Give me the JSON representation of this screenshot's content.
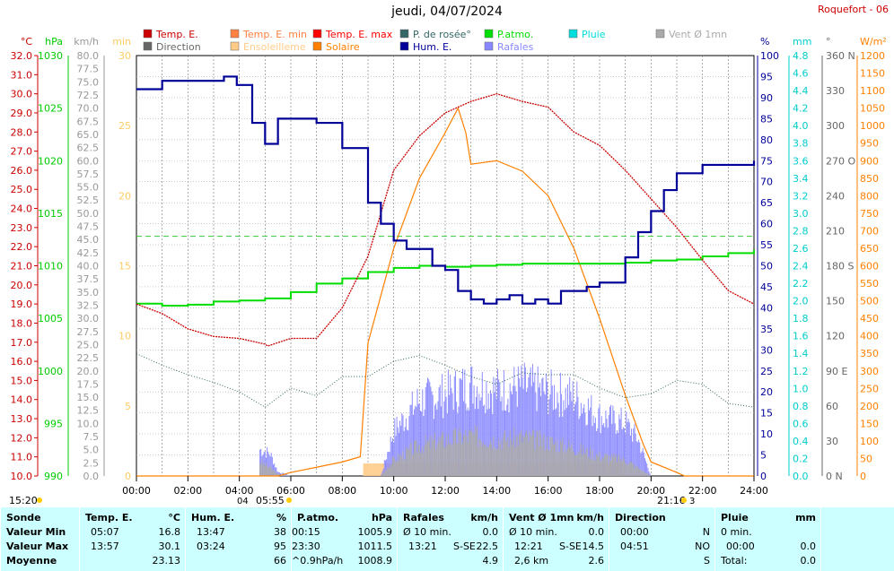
{
  "header": {
    "date": "jeudi, 04/07/2024",
    "site": "Roquefort - 06"
  },
  "legend": [
    {
      "label": "Temp. E.",
      "color": "#cc0000"
    },
    {
      "label": "Temp. E. min",
      "color": "#ff8040"
    },
    {
      "label": "Temp. E. max",
      "color": "#ff0000"
    },
    {
      "label": "P.atmo.",
      "color": "#00dd00"
    },
    {
      "label": "Pluie",
      "color": "#00dddd"
    },
    {
      "label": "Vent Ø 1mn",
      "color": "#aaaaaa"
    },
    {
      "label": "Direction",
      "color": "#666666"
    },
    {
      "label": "Ensoleilleme",
      "color": "#ffcc88"
    },
    {
      "label": "Solaire",
      "color": "#ff8000"
    },
    {
      "label": "Hum. E.",
      "color": "#000099"
    },
    {
      "label": "P. de rosée°",
      "color": "#336666"
    },
    {
      "label": "Rafales",
      "color": "#8888ff"
    }
  ],
  "axes": {
    "temp": {
      "unit": "°C",
      "color": "#cc0000",
      "ticks": [
        "32.0",
        "31.0",
        "30.0",
        "29.0",
        "28.0",
        "27.0",
        "26.0",
        "25.0",
        "24.0",
        "23.0",
        "22.0",
        "21.0",
        "20.0",
        "19.0",
        "18.0",
        "17.0",
        "16.0",
        "15.0",
        "14.0",
        "13.0",
        "12.0",
        "11.0",
        "10.0"
      ]
    },
    "pressure": {
      "unit": "hPa",
      "color": "#00cc00",
      "ticks": [
        "1030",
        "1025",
        "1020",
        "1015",
        "1010",
        "1005",
        "1000",
        "995",
        "990"
      ]
    },
    "wind": {
      "unit": "km/h",
      "color": "#999999",
      "ticks": [
        "80.0",
        "77.5",
        "75.0",
        "72.5",
        "70.0",
        "67.5",
        "65.0",
        "62.5",
        "60.0",
        "57.5",
        "55.0",
        "52.5",
        "50.0",
        "47.5",
        "45.0",
        "42.5",
        "40.0",
        "37.5",
        "35.0",
        "32.5",
        "30.0",
        "27.5",
        "25.0",
        "22.5",
        "20.0",
        "17.5",
        "15.0",
        "12.5",
        "10.0",
        "7.5",
        "5.0",
        "2.5",
        "0.0"
      ]
    },
    "minutes": {
      "unit": "min",
      "color": "#ffcc66",
      "ticks": [
        "30",
        "25",
        "20",
        "15",
        "10",
        "5",
        "0"
      ]
    },
    "humidity": {
      "unit": "%",
      "color": "#000099",
      "ticks": [
        "100",
        "95",
        "90",
        "85",
        "80",
        "75",
        "70",
        "65",
        "60",
        "55",
        "50",
        "45",
        "40",
        "35",
        "30",
        "25",
        "20",
        "15",
        "10",
        "5",
        "0"
      ]
    },
    "rain": {
      "unit": "mm",
      "color": "#00cccc",
      "ticks": [
        "4.8",
        "4.6",
        "4.4",
        "4.2",
        "4.0",
        "3.8",
        "3.6",
        "3.4",
        "3.2",
        "3.0",
        "2.8",
        "2.6",
        "2.4",
        "2.2",
        "2.0",
        "1.8",
        "1.6",
        "1.4",
        "1.2",
        "1.0",
        "0.8",
        "0.6",
        "0.4",
        "0.2",
        "0.0"
      ]
    },
    "direction": {
      "unit": "°",
      "color": "#666666",
      "ticks": [
        "360 N",
        "330",
        "300",
        "270 O",
        "240",
        "210",
        "180 S",
        "150",
        "120",
        "90 E",
        "60",
        "30",
        "0 N"
      ]
    },
    "solar": {
      "unit": "W/m²",
      "color": "#ff8000",
      "ticks": [
        "1200",
        "1150",
        "1100",
        "1050",
        "1000",
        "950",
        "900",
        "850",
        "800",
        "750",
        "700",
        "650",
        "600",
        "550",
        "500",
        "450",
        "400",
        "350",
        "300",
        "250",
        "200",
        "150",
        "100",
        "50",
        "0"
      ]
    },
    "time": {
      "ticks": [
        "00:00",
        "02:00",
        "04:00",
        "06:00",
        "08:00",
        "10:00",
        "12:00",
        "14:00",
        "16:00",
        "18:00",
        "20:00",
        "22:00",
        "24:00"
      ]
    }
  },
  "sun": {
    "sunrise": "05:55",
    "sunset": "21:16",
    "left": "15:20",
    "moonrise": "04",
    "moonset": "3"
  },
  "chart_data": {
    "type": "line",
    "title": "jeudi, 04/07/2024",
    "x_unit": "hour",
    "series": [
      {
        "name": "Temp. E.",
        "unit": "°C",
        "color": "#cc0000",
        "x": [
          0,
          1,
          2,
          3,
          4,
          5,
          5.1,
          6,
          7,
          8,
          9,
          10,
          11,
          12,
          13,
          14,
          15,
          16,
          17,
          18,
          19,
          20,
          21,
          22,
          23,
          24
        ],
        "values": [
          19.0,
          18.5,
          17.7,
          17.3,
          17.2,
          16.9,
          16.8,
          17.2,
          17.2,
          18.8,
          21.5,
          26.0,
          27.8,
          29.0,
          29.6,
          30.0,
          29.6,
          29.3,
          28.0,
          27.3,
          26.0,
          24.5,
          23.0,
          21.3,
          19.7,
          19.0
        ]
      },
      {
        "name": "P.atmo.",
        "unit": "hPa",
        "color": "#00dd00",
        "x": [
          0,
          1,
          2,
          3,
          4,
          5,
          6,
          7,
          8,
          9,
          10,
          11,
          12,
          13,
          14,
          15,
          16,
          17,
          18,
          19,
          20,
          21,
          22,
          23,
          24
        ],
        "values": [
          1006.4,
          1006.2,
          1006.3,
          1006.6,
          1006.7,
          1006.9,
          1007.5,
          1008.3,
          1008.8,
          1009.4,
          1009.8,
          1010.0,
          1009.9,
          1010.0,
          1010.1,
          1010.2,
          1010.2,
          1010.2,
          1010.2,
          1010.3,
          1010.5,
          1010.6,
          1010.9,
          1011.2,
          1011.5
        ]
      },
      {
        "name": "Hum. E.",
        "unit": "%",
        "color": "#000099",
        "x": [
          0,
          0.8,
          1,
          2,
          3,
          3.4,
          3.9,
          4.5,
          5,
          5.5,
          6,
          7,
          8,
          9,
          9.5,
          10,
          10.5,
          11,
          11.5,
          12,
          12.5,
          13,
          13.5,
          14,
          14.5,
          15,
          15.5,
          16,
          16.5,
          17,
          17.5,
          18,
          19,
          19.5,
          20,
          20.5,
          21,
          22,
          23,
          24
        ],
        "values": [
          92,
          92,
          94,
          94,
          94,
          95,
          93,
          84,
          79,
          85,
          85,
          84,
          78,
          65,
          60,
          56,
          54,
          54,
          50,
          49,
          44,
          42,
          41,
          42,
          43,
          41,
          42,
          41,
          44,
          44,
          45,
          46,
          52,
          58,
          63,
          68,
          72,
          74,
          74,
          75
        ]
      },
      {
        "name": "P. de rosée°",
        "unit": "°C",
        "color": "#336666",
        "x": [
          0,
          1,
          2,
          3,
          4,
          5,
          6,
          7,
          8,
          9,
          10,
          11,
          12,
          13,
          14,
          15,
          16,
          17,
          18,
          19,
          20,
          21,
          22,
          23,
          24
        ],
        "values": [
          16.4,
          15.8,
          15.3,
          14.9,
          14.4,
          13.6,
          14.6,
          14.2,
          15.2,
          15.2,
          16.0,
          16.3,
          15.8,
          15.2,
          14.8,
          15.4,
          15.3,
          15.3,
          14.6,
          14.1,
          14.3,
          15.0,
          14.8,
          13.8,
          13.6
        ]
      },
      {
        "name": "Solaire",
        "unit": "W/m²",
        "color": "#ff8000",
        "x": [
          0,
          5.5,
          6,
          7,
          8,
          8.7,
          9,
          10,
          11,
          12,
          12.5,
          12.8,
          13,
          14,
          15,
          16,
          17,
          18,
          19,
          19.7,
          20,
          21,
          21.3,
          24
        ],
        "values": [
          0,
          0,
          10,
          25,
          40,
          55,
          380,
          650,
          850,
          980,
          1050,
          980,
          890,
          900,
          870,
          800,
          650,
          450,
          230,
          90,
          40,
          10,
          0,
          0
        ]
      },
      {
        "name": "Rafales",
        "unit": "km/h",
        "color": "#8888ff",
        "x": [
          4.8,
          5.2,
          5.5,
          6,
          9.5,
          10,
          11,
          12,
          13,
          14,
          15,
          16,
          17,
          18,
          19,
          19.5,
          20
        ],
        "values": [
          6.5,
          5.5,
          1.0,
          0,
          0,
          11.0,
          18.5,
          20.0,
          22.5,
          21.0,
          22.0,
          20.5,
          19.5,
          14.5,
          13.0,
          9.0,
          0
        ]
      },
      {
        "name": "Vent Ø 1mn",
        "unit": "km/h",
        "color": "#aaaaaa",
        "x": [
          4.8,
          5.2,
          5.5,
          6,
          9.5,
          10,
          11,
          12,
          13,
          14,
          15,
          16,
          17,
          18,
          19,
          19.5,
          20
        ],
        "values": [
          3.5,
          2.0,
          0.5,
          0,
          0,
          4.0,
          7.5,
          9.0,
          10.0,
          9.0,
          9.5,
          8.5,
          7.0,
          5.0,
          4.0,
          2.0,
          0
        ]
      },
      {
        "name": "Ensoleilleme",
        "unit": "min",
        "color": "#ffcc88",
        "x": [
          0,
          8.8,
          8.81,
          18.9,
          18.91,
          24
        ],
        "values": [
          0,
          0,
          1,
          1,
          0,
          0
        ]
      },
      {
        "name": "Pluie",
        "unit": "mm",
        "color": "#00dddd",
        "x": [
          0,
          24
        ],
        "values": [
          0.0,
          0.0
        ]
      }
    ],
    "humidity_reference": 57,
    "ylim_temp": [
      10,
      32
    ],
    "ylim_pressure": [
      990,
      1030
    ],
    "ylim_wind": [
      0,
      80
    ],
    "ylim_humidity": [
      0,
      100
    ],
    "ylim_solar": [
      0,
      1200
    ],
    "xlim": [
      0,
      24
    ]
  },
  "summary": {
    "row_labels": [
      "Sonde",
      "Valeur Min",
      "Valeur Max",
      "Moyenne"
    ],
    "temp": {
      "title": "Temp. E.",
      "unit": "°C",
      "min_time": "05:07",
      "min": "16.8",
      "max_time": "13:57",
      "max": "30.1",
      "avg": "23.13"
    },
    "hum": {
      "title": "Hum. E.",
      "unit": "%",
      "min_time": "13:47",
      "min": "38",
      "max_time": "03:24",
      "max": "95",
      "avg": "66"
    },
    "press": {
      "title": "P.atmo.",
      "unit": "hPa",
      "min_time": "00:15",
      "min": "1005.9",
      "max_time": "23:30",
      "max": "1011.5",
      "avg_note": "^0.9hPa/h",
      "avg": "1008.9"
    },
    "gust": {
      "title": "Rafales",
      "unit": "km/h",
      "min_label": "Ø 10 min.",
      "min": "0.0",
      "max_time": "13:21",
      "max_dir": "S-SE",
      "max": "22.5",
      "avg": "4.9"
    },
    "wind": {
      "title": "Vent Ø 1mn",
      "unit": "km/h",
      "min_label": "Ø 10 min.",
      "min": "0.0",
      "max_time": "12:21",
      "max_dir": "S-SE",
      "max": "14.5",
      "avg_note": "2,6 km",
      "avg": "2.6"
    },
    "dir": {
      "title": "Direction",
      "min_time": "00:00",
      "min": "N",
      "max_time": "04:51",
      "max": "NO",
      "avg": "S"
    },
    "rain": {
      "title": "Pluie",
      "unit": "mm",
      "min_label": "0 min.",
      "max_time": "00:00",
      "max": "0.0",
      "avg_label": "Total:",
      "avg": "0.0"
    }
  }
}
